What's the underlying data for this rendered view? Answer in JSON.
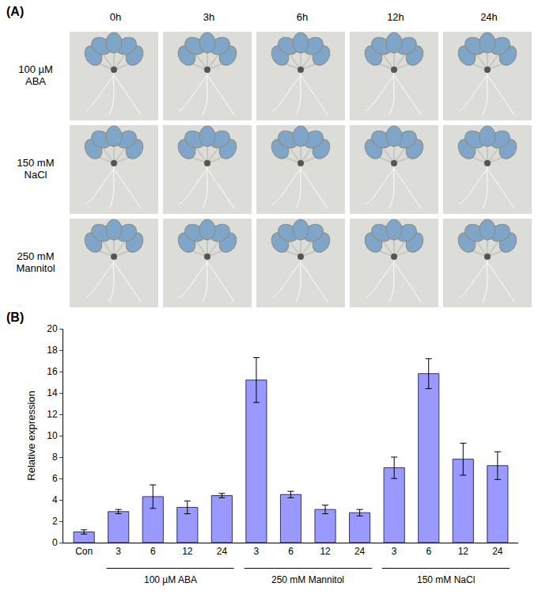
{
  "panel_a": {
    "label": "(A)",
    "columns": [
      "0h",
      "3h",
      "6h",
      "12h",
      "24h"
    ],
    "rows": [
      "100 µM ABA",
      "150 mM NaCl",
      "250 mM Mannitol"
    ]
  },
  "chart_data": {
    "type": "bar",
    "label": "(B)",
    "y_label": "Relative expression",
    "categories": [
      "Con",
      "3",
      "6",
      "12",
      "24",
      "3",
      "6",
      "12",
      "24",
      "3",
      "6",
      "12",
      "24"
    ],
    "values": [
      1.0,
      2.9,
      4.3,
      3.3,
      4.4,
      15.2,
      4.5,
      3.1,
      2.8,
      7.0,
      15.8,
      7.8,
      7.2
    ],
    "errors": [
      0.2,
      0.2,
      1.1,
      0.6,
      0.2,
      2.1,
      0.3,
      0.4,
      0.3,
      1.0,
      1.4,
      1.5,
      1.3
    ],
    "groups": [
      {
        "label": "100 µM ABA",
        "from": 1,
        "to": 4
      },
      {
        "label": "250 mM Mannitol",
        "from": 5,
        "to": 8
      },
      {
        "label": "150 mM NaCl",
        "from": 9,
        "to": 12
      }
    ],
    "color": "#9999ff",
    "ylim": [
      0,
      20
    ],
    "yticks": [
      0,
      2,
      4,
      6,
      8,
      10,
      12,
      14,
      16,
      18,
      20
    ],
    "grid": false
  }
}
